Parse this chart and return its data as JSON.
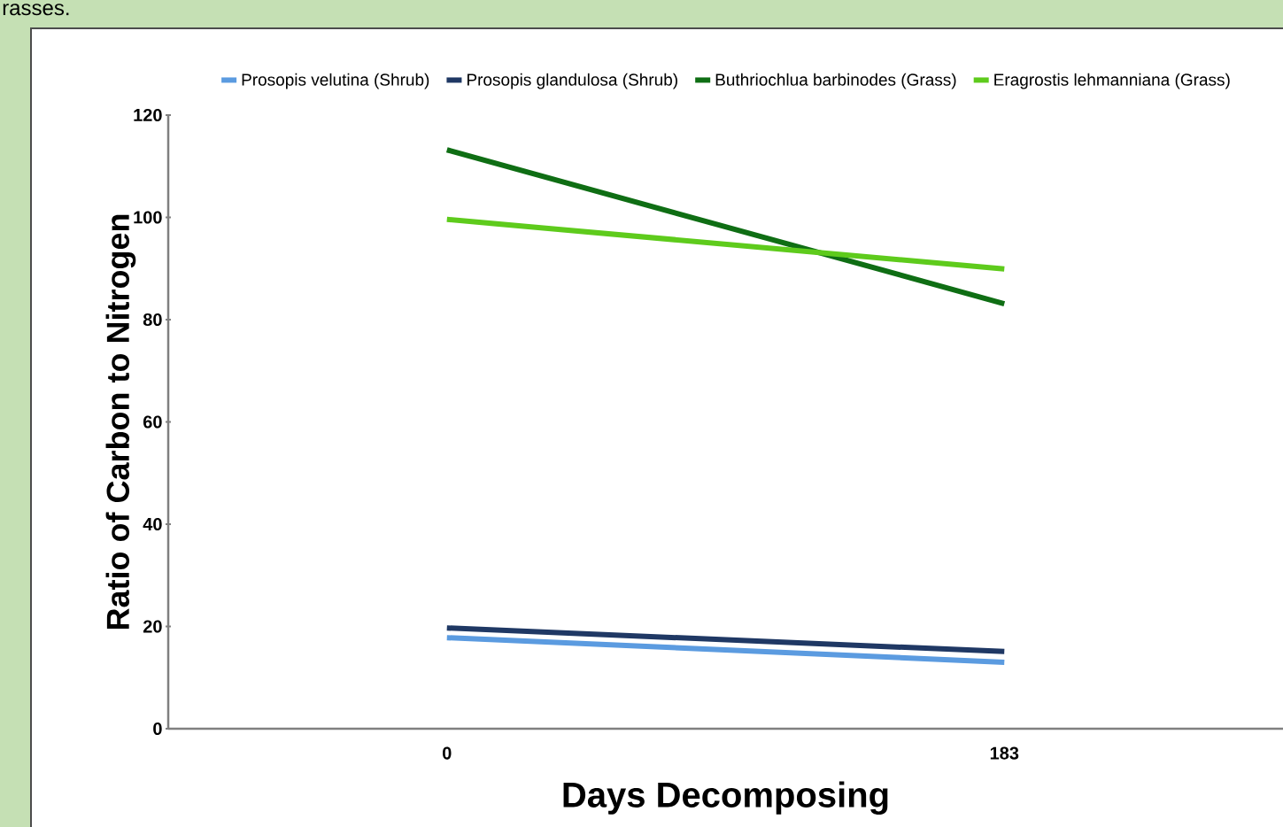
{
  "chart_data": {
    "type": "line",
    "annotations": [
      "rasses."
    ],
    "xlabel": "Days Decomposing",
    "ylabel": "Ratio of Carbon to Nitrogen",
    "categories": [
      "0",
      "183"
    ],
    "series": [
      {
        "name": "Prosopis velutina (Shrub)",
        "color": "#5b9be0",
        "values": [
          17.8,
          13.0
        ]
      },
      {
        "name": "Prosopis glandulosa (Shrub)",
        "color": "#1f3864",
        "values": [
          19.7,
          15.1
        ]
      },
      {
        "name": "Buthriochlua barbinodes (Grass)",
        "color": "#0f6e14",
        "values": [
          113.2,
          83.1
        ]
      },
      {
        "name": "Eragrostis lehmanniana (Grass)",
        "color": "#5ecb1c",
        "values": [
          99.6,
          89.9
        ]
      }
    ],
    "ylim": [
      0,
      120
    ],
    "yticks": [
      0,
      20,
      40,
      60,
      80,
      100,
      120
    ],
    "legend": "top",
    "grid": false,
    "marker": "none",
    "line_style": "solid"
  }
}
